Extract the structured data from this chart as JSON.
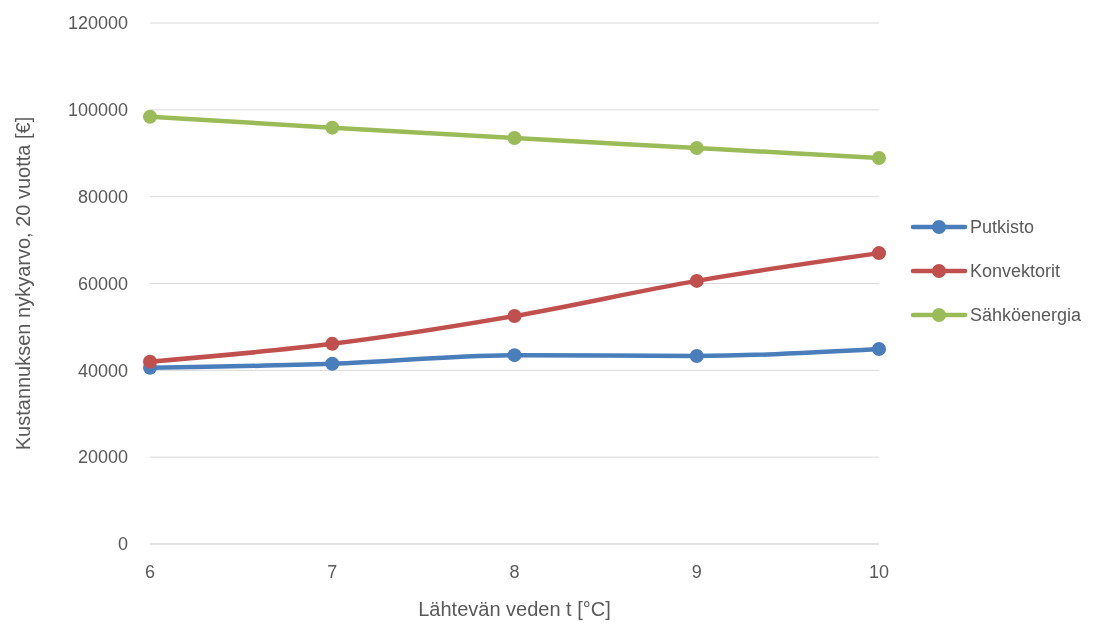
{
  "chart_data": {
    "type": "line",
    "xlabel": "Lähtevän veden t [°C]",
    "ylabel": "Kustannuksen nykyarvo, 20 vuotta [€]",
    "x": [
      6,
      7,
      8,
      9,
      10
    ],
    "xlim": [
      6,
      10
    ],
    "xticks": [
      6,
      7,
      8,
      9,
      10
    ],
    "ylim": [
      0,
      120000
    ],
    "yticks": [
      0,
      20000,
      40000,
      60000,
      80000,
      100000,
      120000
    ],
    "grid": "y",
    "legend": "right",
    "marker": "circle",
    "line_style": "solid",
    "series": [
      {
        "name": "Putkisto",
        "color": "#4a7ebb",
        "values": [
          40600,
          41500,
          43500,
          43300,
          44900
        ]
      },
      {
        "name": "Konvektorit",
        "color": "#c0504d",
        "values": [
          42000,
          46100,
          52500,
          60600,
          67000
        ]
      },
      {
        "name": "Sähköenergia",
        "color": "#9bbb59",
        "values": [
          98400,
          95900,
          93500,
          91200,
          88900
        ]
      }
    ]
  }
}
